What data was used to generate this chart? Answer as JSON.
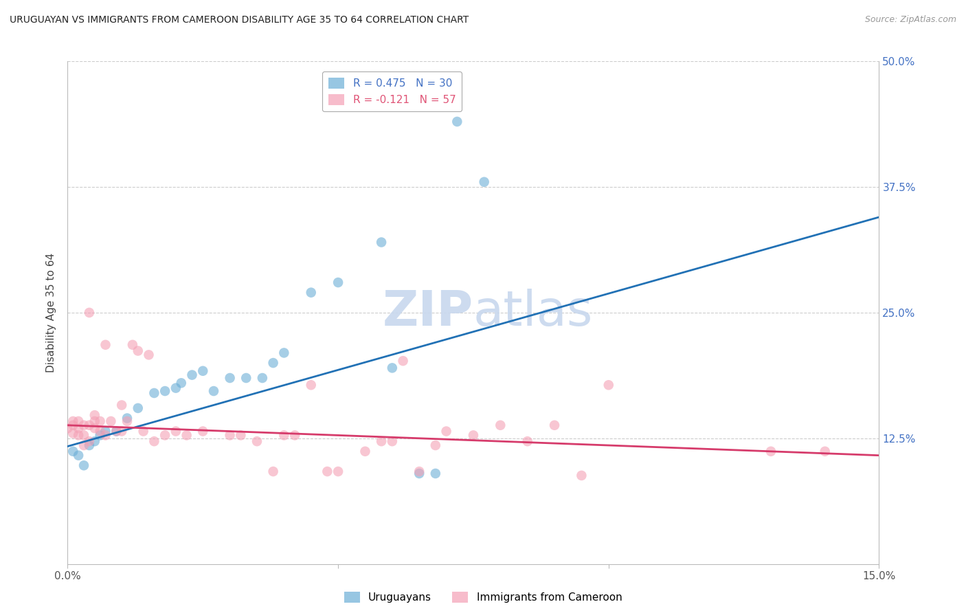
{
  "title": "URUGUAYAN VS IMMIGRANTS FROM CAMEROON DISABILITY AGE 35 TO 64 CORRELATION CHART",
  "source": "Source: ZipAtlas.com",
  "ylabel": "Disability Age 35 to 64",
  "x_min": 0.0,
  "x_max": 0.15,
  "y_min": 0.0,
  "y_max": 0.5,
  "uruguayan_color": "#6baed6",
  "cameroon_color": "#f4a0b5",
  "uruguayan_line_color": "#2171b5",
  "cameroon_line_color": "#d63b6b",
  "watermark_color": "#c8d8ee",
  "uruguayan_points": [
    [
      0.001,
      0.112
    ],
    [
      0.002,
      0.108
    ],
    [
      0.003,
      0.098
    ],
    [
      0.004,
      0.118
    ],
    [
      0.005,
      0.122
    ],
    [
      0.006,
      0.128
    ],
    [
      0.007,
      0.132
    ],
    [
      0.009,
      0.132
    ],
    [
      0.011,
      0.145
    ],
    [
      0.013,
      0.155
    ],
    [
      0.016,
      0.17
    ],
    [
      0.018,
      0.172
    ],
    [
      0.02,
      0.175
    ],
    [
      0.021,
      0.18
    ],
    [
      0.023,
      0.188
    ],
    [
      0.025,
      0.192
    ],
    [
      0.027,
      0.172
    ],
    [
      0.03,
      0.185
    ],
    [
      0.033,
      0.185
    ],
    [
      0.036,
      0.185
    ],
    [
      0.038,
      0.2
    ],
    [
      0.04,
      0.21
    ],
    [
      0.045,
      0.27
    ],
    [
      0.05,
      0.28
    ],
    [
      0.058,
      0.32
    ],
    [
      0.06,
      0.195
    ],
    [
      0.065,
      0.09
    ],
    [
      0.068,
      0.09
    ],
    [
      0.072,
      0.44
    ],
    [
      0.077,
      0.38
    ]
  ],
  "cameroon_points": [
    [
      0.0,
      0.135
    ],
    [
      0.001,
      0.142
    ],
    [
      0.001,
      0.13
    ],
    [
      0.001,
      0.138
    ],
    [
      0.002,
      0.128
    ],
    [
      0.002,
      0.142
    ],
    [
      0.002,
      0.135
    ],
    [
      0.003,
      0.118
    ],
    [
      0.003,
      0.128
    ],
    [
      0.003,
      0.138
    ],
    [
      0.004,
      0.122
    ],
    [
      0.004,
      0.25
    ],
    [
      0.004,
      0.138
    ],
    [
      0.005,
      0.142
    ],
    [
      0.005,
      0.135
    ],
    [
      0.005,
      0.148
    ],
    [
      0.006,
      0.132
    ],
    [
      0.006,
      0.142
    ],
    [
      0.007,
      0.128
    ],
    [
      0.007,
      0.218
    ],
    [
      0.008,
      0.142
    ],
    [
      0.009,
      0.132
    ],
    [
      0.01,
      0.158
    ],
    [
      0.01,
      0.132
    ],
    [
      0.011,
      0.142
    ],
    [
      0.012,
      0.218
    ],
    [
      0.013,
      0.212
    ],
    [
      0.014,
      0.132
    ],
    [
      0.015,
      0.208
    ],
    [
      0.016,
      0.122
    ],
    [
      0.018,
      0.128
    ],
    [
      0.02,
      0.132
    ],
    [
      0.022,
      0.128
    ],
    [
      0.025,
      0.132
    ],
    [
      0.03,
      0.128
    ],
    [
      0.032,
      0.128
    ],
    [
      0.035,
      0.122
    ],
    [
      0.038,
      0.092
    ],
    [
      0.04,
      0.128
    ],
    [
      0.042,
      0.128
    ],
    [
      0.045,
      0.178
    ],
    [
      0.048,
      0.092
    ],
    [
      0.05,
      0.092
    ],
    [
      0.055,
      0.112
    ],
    [
      0.058,
      0.122
    ],
    [
      0.06,
      0.122
    ],
    [
      0.062,
      0.202
    ],
    [
      0.065,
      0.092
    ],
    [
      0.068,
      0.118
    ],
    [
      0.07,
      0.132
    ],
    [
      0.075,
      0.128
    ],
    [
      0.08,
      0.138
    ],
    [
      0.085,
      0.122
    ],
    [
      0.09,
      0.138
    ],
    [
      0.095,
      0.088
    ],
    [
      0.1,
      0.178
    ],
    [
      0.13,
      0.112
    ],
    [
      0.14,
      0.112
    ]
  ],
  "uru_line_x": [
    0.0,
    0.15
  ],
  "uru_line_y": [
    0.117,
    0.345
  ],
  "cam_line_x": [
    0.0,
    0.15
  ],
  "cam_line_y": [
    0.138,
    0.108
  ]
}
